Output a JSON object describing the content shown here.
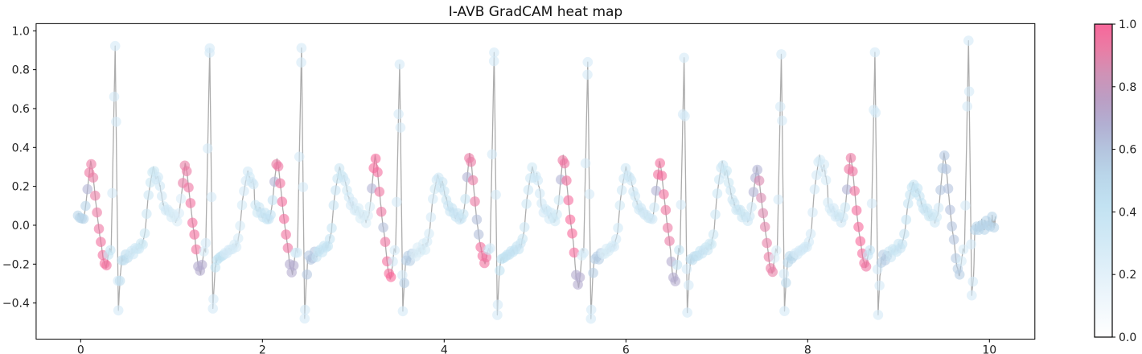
{
  "title": "I-AVB GradCAM heat map",
  "chart_data": {
    "type": "line+scatter",
    "title": "I-AVB GradCAM heat map",
    "xlabel": "",
    "ylabel": "",
    "xlim": [
      -0.49,
      10.5
    ],
    "ylim": [
      -0.586,
      1.037
    ],
    "x_ticks": [
      0,
      2,
      4,
      6,
      8,
      10
    ],
    "x_tick_labels": [
      "0",
      "2",
      "4",
      "6",
      "8",
      "10"
    ],
    "y_ticks": [
      1.0,
      0.8,
      0.6,
      0.4,
      0.2,
      0.0,
      -0.2,
      -0.4
    ],
    "y_tick_labels": [
      "1.0",
      "0.8",
      "0.6",
      "0.4",
      "0.2",
      "0.0",
      "−0.2",
      "−0.4"
    ],
    "grid": false,
    "line_color": "#9e9e9e",
    "line_opacity": 0.85,
    "line_width": 1.3,
    "dot_radius": 6.3,
    "dot_opacity": 0.6,
    "signal_domain": [
      -0.03,
      10.07
    ],
    "sample_step": 0.005,
    "scatter_step": 0.021,
    "description": "ECG lead trace over 10 s; scatter dots colored by GradCAM importance (0-1). High (pink) importance on P-wave / PR-segment before each QRS; last beat highlighted purple (~0.58).",
    "beats": [
      {
        "t": 0.38,
        "R": 0.92,
        "S": -0.44,
        "P": 0.33,
        "B": -0.22,
        "T": 0.3,
        "cam_p": 0.95,
        "cam_s": 0.45,
        "flags": []
      },
      {
        "t": 1.42,
        "R": 0.91,
        "S": -0.43,
        "P": 0.32,
        "B": -0.25,
        "T": 0.28,
        "cam_p": 0.95,
        "cam_s": 0.42,
        "flags": [
          "mauve_bottom"
        ]
      },
      {
        "t": 2.43,
        "R": 0.91,
        "S": -0.48,
        "P": 0.34,
        "B": -0.25,
        "T": 0.3,
        "cam_p": 0.95,
        "cam_s": 0.58,
        "flags": [
          "mauve_bottom"
        ]
      },
      {
        "t": 3.51,
        "R": 0.83,
        "S": -0.44,
        "P": 0.36,
        "B": -0.28,
        "T": 0.26,
        "cam_p": 0.97,
        "cam_s": 0.55,
        "flags": [
          "mauve_mid"
        ]
      },
      {
        "t": 4.55,
        "R": 0.89,
        "S": -0.46,
        "P": 0.37,
        "B": -0.2,
        "T": 0.3,
        "cam_p": 0.95,
        "cam_s": 0.42,
        "flags": [
          "mauve_mid"
        ]
      },
      {
        "t": 5.58,
        "R": 0.84,
        "S": -0.48,
        "P": 0.36,
        "B": -0.32,
        "T": 0.3,
        "cam_p": 0.97,
        "cam_s": 0.55,
        "flags": [
          "mauve_bottom"
        ]
      },
      {
        "t": 6.64,
        "R": 0.86,
        "S": -0.45,
        "P": 0.33,
        "B": -0.3,
        "T": 0.33,
        "cam_p": 0.95,
        "cam_s": 0.45,
        "flags": [
          "mauve_bottom"
        ]
      },
      {
        "t": 7.71,
        "R": 0.88,
        "S": -0.44,
        "P": 0.3,
        "B": -0.25,
        "T": 0.36,
        "cam_p": 0.9,
        "cam_s": 0.5,
        "flags": [
          "mauve_top"
        ]
      },
      {
        "t": 8.74,
        "R": 0.89,
        "S": -0.46,
        "P": 0.36,
        "B": -0.22,
        "T": 0.22,
        "cam_p": 0.97,
        "cam_s": 0.55,
        "flags": []
      },
      {
        "t": 9.77,
        "R": 0.95,
        "S": -0.36,
        "P": 0.37,
        "B": -0.26,
        "T": 0.0,
        "cam_p": 0.58,
        "cam_s": 0.52,
        "flags": [
          "purple_beat",
          "noisy_tail"
        ],
        "base": -0.02,
        "rise": 0.04
      }
    ],
    "baseline": {
      "base": -0.18,
      "rise": 0.08
    },
    "noise": {
      "baseline_amp": 0.022,
      "tail_amp": 0.015,
      "pr_amp": 0.008,
      "default_amp": 0.003,
      "noisy_tail_mult": 1.8
    },
    "cam_rules": {
      "pink_zone": [
        -0.315,
        -0.085
      ],
      "post_s_zone": [
        0.05,
        0.15
      ],
      "spike_zone": [
        -0.05,
        0.05
      ],
      "spike_cam": 0.3,
      "lead_in_x_max": 0.06,
      "lead_in_cam": 0.52,
      "mauve_top_cam": 0.66,
      "mauve_bottom_cam": 0.7,
      "mauve_mid_cam": 0.62,
      "default_base": 0.33
    },
    "colorbar": {
      "ticks": [
        0.0,
        0.2,
        0.4,
        0.6,
        0.8,
        1.0
      ],
      "tick_labels": [
        "0.0",
        "0.2",
        "0.4",
        "0.6",
        "0.8",
        "1.0"
      ],
      "label": ""
    },
    "colormap_stops": [
      [
        0.0,
        "#ffffff"
      ],
      [
        0.15,
        "#eaf4fb"
      ],
      [
        0.3,
        "#d3eaf6"
      ],
      [
        0.42,
        "#c2e2f2"
      ],
      [
        0.52,
        "#b9d5e9"
      ],
      [
        0.6,
        "#b4c4de"
      ],
      [
        0.68,
        "#b2afd2"
      ],
      [
        0.76,
        "#bb9ec4"
      ],
      [
        0.84,
        "#cf92b6"
      ],
      [
        0.92,
        "#e97da5"
      ],
      [
        1.0,
        "#f8679a"
      ]
    ],
    "axis_color": "#000000",
    "tick_label_color": "#222222"
  }
}
